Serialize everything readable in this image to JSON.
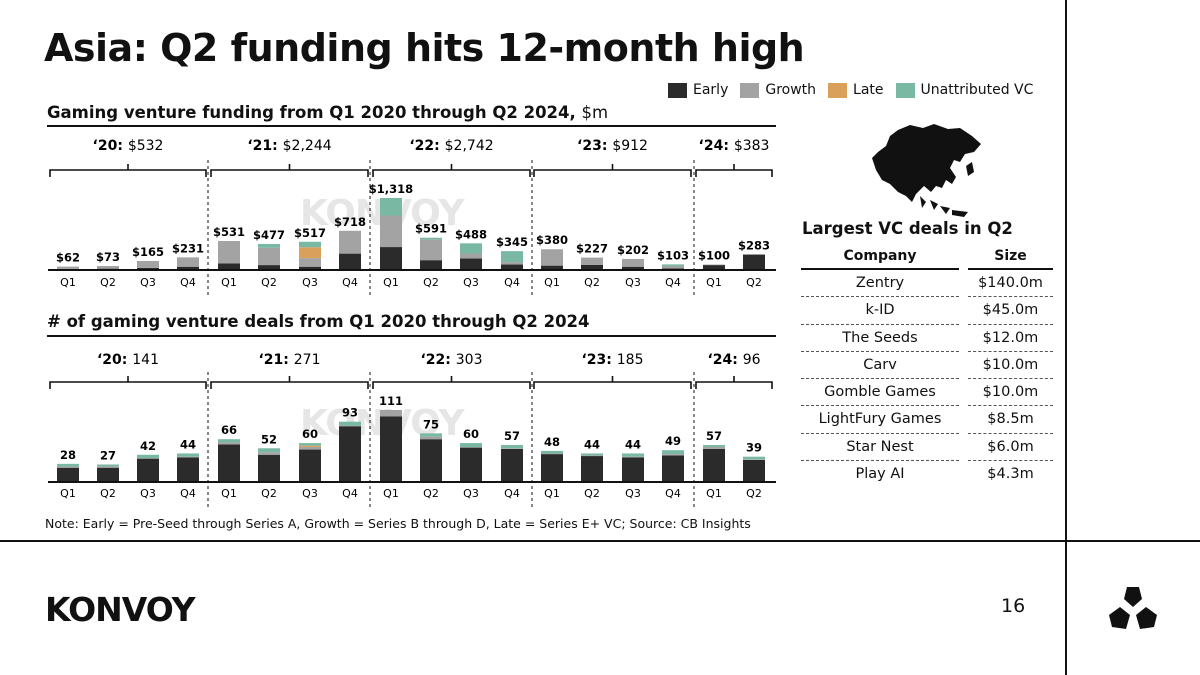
{
  "page": {
    "title": "Asia: Q2 funding hits 12-month high",
    "note": "Note: Early = Pre-Seed through Series A, Growth = Series B through D, Late = Series E+ VC; Source: CB Insights",
    "logo_text": "KONVOY",
    "watermark_text": "KONVOY",
    "page_number": "16"
  },
  "colors": {
    "early": "#2b2b2b",
    "growth": "#a3a3a3",
    "late": "#d9a05b",
    "unattributed": "#79b8a2"
  },
  "legend": [
    {
      "key": "early",
      "label": "Early"
    },
    {
      "key": "growth",
      "label": "Growth"
    },
    {
      "key": "late",
      "label": "Late"
    },
    {
      "key": "unattributed",
      "label": "Unattributed VC"
    }
  ],
  "chart_data": [
    {
      "type": "bar",
      "stacked": true,
      "title": "Gaming venture funding from Q1 2020 through Q2 2024,",
      "unit": "$m",
      "categories": [
        "Q1",
        "Q2",
        "Q3",
        "Q4",
        "Q1",
        "Q2",
        "Q3",
        "Q4",
        "Q1",
        "Q2",
        "Q3",
        "Q4",
        "Q1",
        "Q2",
        "Q3",
        "Q4",
        "Q1",
        "Q2"
      ],
      "totals": [
        62,
        73,
        165,
        231,
        531,
        477,
        517,
        718,
        1318,
        591,
        488,
        345,
        380,
        227,
        202,
        103,
        100,
        283
      ],
      "total_labels": [
        "$62",
        "$73",
        "$165",
        "$231",
        "$531",
        "$477",
        "$517",
        "$718",
        "$1,318",
        "$591",
        "$488",
        "$345",
        "$380",
        "$227",
        "$202",
        "$103",
        "$100",
        "$283"
      ],
      "series": [
        {
          "name": "Early",
          "key": "early",
          "values": [
            20,
            25,
            40,
            60,
            120,
            90,
            60,
            300,
            420,
            180,
            210,
            100,
            80,
            95,
            60,
            30,
            90,
            283
          ]
        },
        {
          "name": "Growth",
          "key": "growth",
          "values": [
            42,
            48,
            125,
            171,
            411,
            317,
            157,
            418,
            578,
            381,
            92,
            45,
            300,
            132,
            142,
            43,
            10,
            0
          ]
        },
        {
          "name": "Late",
          "key": "late",
          "values": [
            0,
            0,
            0,
            0,
            0,
            0,
            200,
            0,
            0,
            0,
            0,
            0,
            0,
            0,
            0,
            0,
            0,
            0
          ]
        },
        {
          "name": "Unattributed VC",
          "key": "unattributed",
          "values": [
            0,
            0,
            0,
            0,
            0,
            70,
            100,
            0,
            320,
            30,
            186,
            200,
            0,
            0,
            0,
            30,
            0,
            0
          ]
        }
      ],
      "years": [
        {
          "year": "‘20:",
          "total": "$532"
        },
        {
          "year": "‘21:",
          "total": "$2,244"
        },
        {
          "year": "‘22:",
          "total": "$2,742"
        },
        {
          "year": "‘23:",
          "total": "$912"
        },
        {
          "year": "‘24:",
          "total": "$383"
        }
      ],
      "ylim": [
        0,
        1400
      ]
    },
    {
      "type": "bar",
      "stacked": true,
      "title": "# of gaming venture deals from Q1 2020 through Q2 2024",
      "categories": [
        "Q1",
        "Q2",
        "Q3",
        "Q4",
        "Q1",
        "Q2",
        "Q3",
        "Q4",
        "Q1",
        "Q2",
        "Q3",
        "Q4",
        "Q1",
        "Q2",
        "Q3",
        "Q4",
        "Q1",
        "Q2"
      ],
      "totals": [
        28,
        27,
        42,
        44,
        66,
        52,
        60,
        93,
        111,
        75,
        60,
        57,
        48,
        44,
        44,
        49,
        57,
        39
      ],
      "total_labels": [
        "28",
        "27",
        "42",
        "44",
        "66",
        "52",
        "60",
        "93",
        "111",
        "75",
        "60",
        "57",
        "48",
        "44",
        "44",
        "49",
        "57",
        "39"
      ],
      "series": [
        {
          "name": "Early",
          "key": "early",
          "values": [
            22,
            22,
            36,
            38,
            58,
            42,
            50,
            86,
            101,
            66,
            53,
            51,
            43,
            40,
            38,
            41,
            51,
            34
          ]
        },
        {
          "name": "Growth",
          "key": "growth",
          "values": [
            2,
            2,
            1,
            1,
            3,
            4,
            4,
            1,
            10,
            4,
            1,
            1,
            1,
            1,
            1,
            2,
            3,
            1
          ]
        },
        {
          "name": "Late",
          "key": "late",
          "values": [
            0,
            0,
            0,
            0,
            0,
            0,
            2,
            0,
            0,
            0,
            0,
            0,
            0,
            0,
            0,
            0,
            0,
            0
          ]
        },
        {
          "name": "Unattributed VC",
          "key": "unattributed",
          "values": [
            4,
            3,
            5,
            5,
            5,
            6,
            4,
            6,
            0,
            5,
            6,
            5,
            4,
            3,
            5,
            6,
            3,
            4
          ]
        }
      ],
      "years": [
        {
          "year": "‘20:",
          "total": "141"
        },
        {
          "year": "‘21:",
          "total": "271"
        },
        {
          "year": "‘22:",
          "total": "303"
        },
        {
          "year": "‘23:",
          "total": "185"
        },
        {
          "year": "‘24:",
          "total": "96"
        }
      ],
      "ylim": [
        0,
        120
      ]
    }
  ],
  "deals": {
    "title": "Largest VC deals in Q2",
    "headers": {
      "company": "Company",
      "size": "Size"
    },
    "rows": [
      {
        "company": "Zentry",
        "size": "$140.0m"
      },
      {
        "company": "k-ID",
        "size": "$45.0m"
      },
      {
        "company": "The Seeds",
        "size": "$12.0m"
      },
      {
        "company": "Carv",
        "size": "$10.0m"
      },
      {
        "company": "Gomble Games",
        "size": "$10.0m"
      },
      {
        "company": "LightFury Games",
        "size": "$8.5m"
      },
      {
        "company": "Star Nest",
        "size": "$6.0m"
      },
      {
        "company": "Play AI",
        "size": "$4.3m"
      }
    ]
  }
}
